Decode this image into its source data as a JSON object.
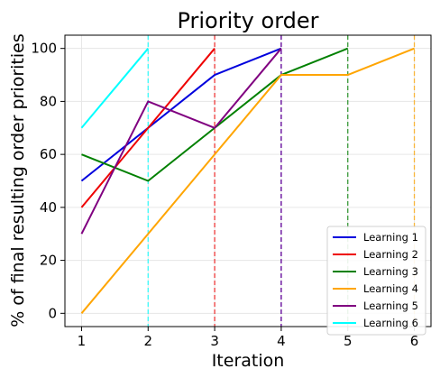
{
  "chart_data": {
    "type": "line",
    "title": "Priority order",
    "xlabel": "Iteration",
    "ylabel": "% of final resulting order priorities",
    "x_ticks": [
      1,
      2,
      3,
      4,
      5,
      6
    ],
    "y_ticks": [
      0,
      20,
      40,
      60,
      80,
      100
    ],
    "xlim": [
      0.75,
      6.25
    ],
    "ylim": [
      -5,
      105
    ],
    "grid": true,
    "legend_position": "lower-right",
    "series": [
      {
        "name": "Learning 1",
        "color": "#0000dd",
        "x": [
          1,
          2,
          3,
          4
        ],
        "y": [
          50,
          70,
          90,
          100
        ],
        "final_iteration": 4
      },
      {
        "name": "Learning 2",
        "color": "#ee0000",
        "x": [
          1,
          2,
          3
        ],
        "y": [
          40,
          70,
          100
        ],
        "final_iteration": 3
      },
      {
        "name": "Learning 3",
        "color": "#008000",
        "x": [
          1,
          2,
          3,
          4,
          5
        ],
        "y": [
          60,
          50,
          70,
          90,
          100
        ],
        "final_iteration": 5
      },
      {
        "name": "Learning 4",
        "color": "#ffa500",
        "x": [
          1,
          2,
          3,
          4,
          5,
          6
        ],
        "y": [
          0,
          30,
          60,
          90,
          90,
          100
        ],
        "final_iteration": 6
      },
      {
        "name": "Learning 5",
        "color": "#800080",
        "x": [
          1,
          2,
          3,
          4
        ],
        "y": [
          30,
          80,
          70,
          100
        ],
        "final_iteration": 4
      },
      {
        "name": "Learning 6",
        "color": "#00ffff",
        "x": [
          1,
          2
        ],
        "y": [
          70,
          100
        ],
        "final_iteration": 2
      }
    ]
  }
}
